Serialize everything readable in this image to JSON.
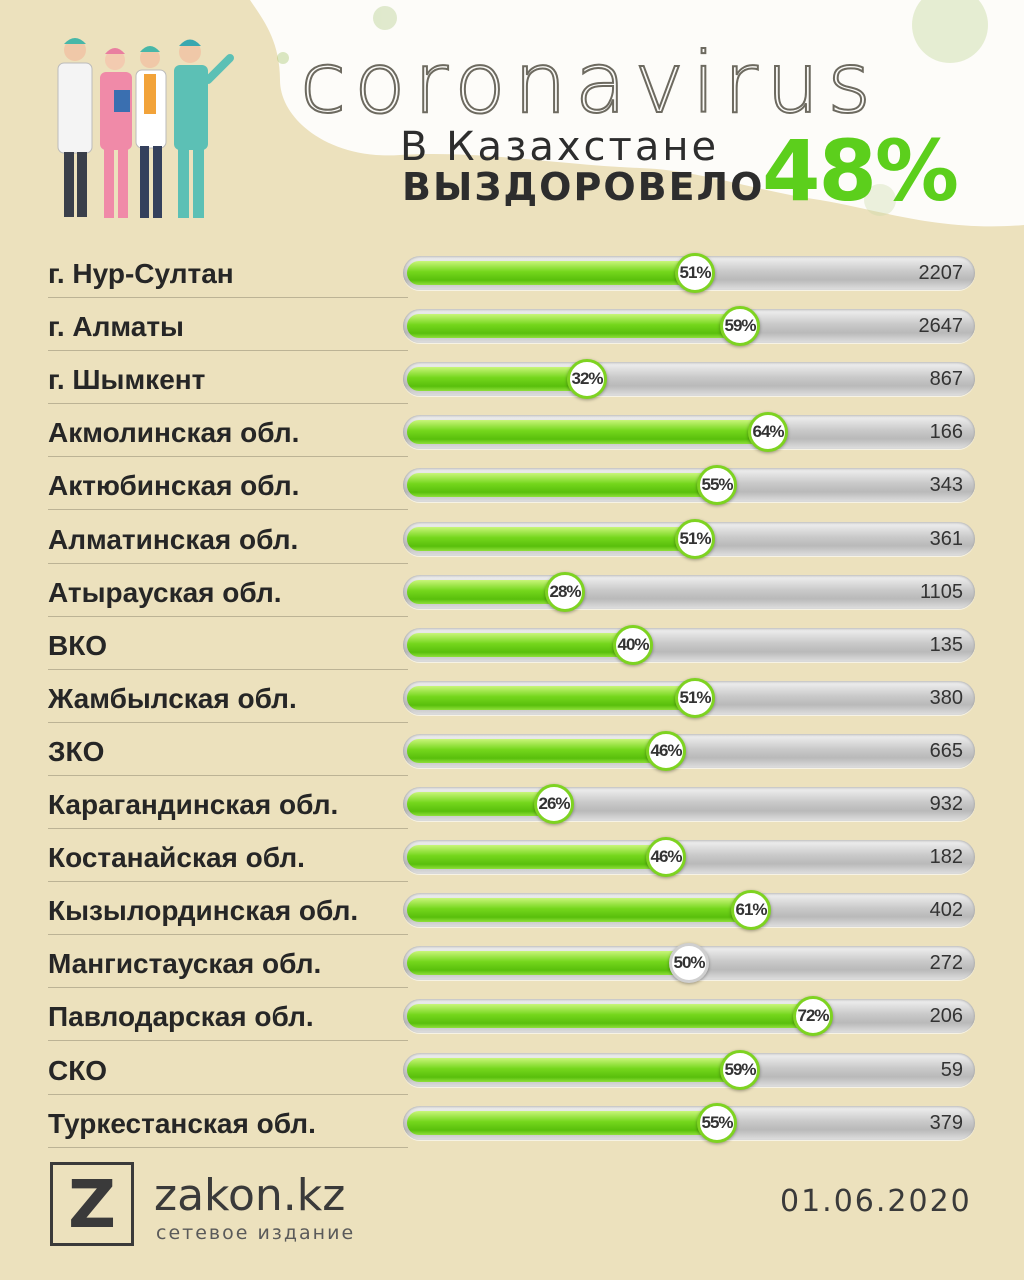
{
  "header": {
    "title": "coronavirus",
    "subtitle_line1": "В Казахстане",
    "subtitle_line2": "ВЫЗДОРОВЕЛО",
    "total_percent": "48%"
  },
  "colors": {
    "background": "#ece1bd",
    "accent_green": "#5ccf1c",
    "track_gray": "#c9c9c9"
  },
  "chart_data": {
    "type": "bar",
    "categories": [
      "г. Нур-Султан",
      "г. Алматы",
      "г. Шымкент",
      "Акмолинская обл.",
      "Актюбинская обл.",
      "Алматинская обл.",
      "Атырауская обл.",
      "ВКО",
      "Жамбылская обл.",
      "ЗКО",
      "Карагандинская обл.",
      "Костанайская обл.",
      "Кызылординская обл.",
      "Мангистауская обл.",
      "Павлодарская обл.",
      "СКО",
      "Туркестанская обл."
    ],
    "series": [
      {
        "values": [
          51,
          59,
          32,
          64,
          55,
          51,
          28,
          40,
          51,
          46,
          26,
          46,
          61,
          50,
          72,
          59,
          55
        ]
      }
    ],
    "counts": [
      2207,
      2647,
      867,
      166,
      343,
      361,
      1105,
      135,
      380,
      665,
      932,
      182,
      402,
      272,
      206,
      59,
      379
    ],
    "percent_labels": [
      "51%",
      "59%",
      "32%",
      "64%",
      "55%",
      "51%",
      "28%",
      "40%",
      "51%",
      "46%",
      "26%",
      "46%",
      "61%",
      "50%",
      "72%",
      "59%",
      "55%"
    ],
    "ylim": [
      0,
      100
    ],
    "orientation": "horizontal"
  },
  "footer": {
    "logo_letter": "Z",
    "logo_name": "zakon.kz",
    "logo_subtitle": "сетевое издание",
    "date": "01.06.2020"
  }
}
